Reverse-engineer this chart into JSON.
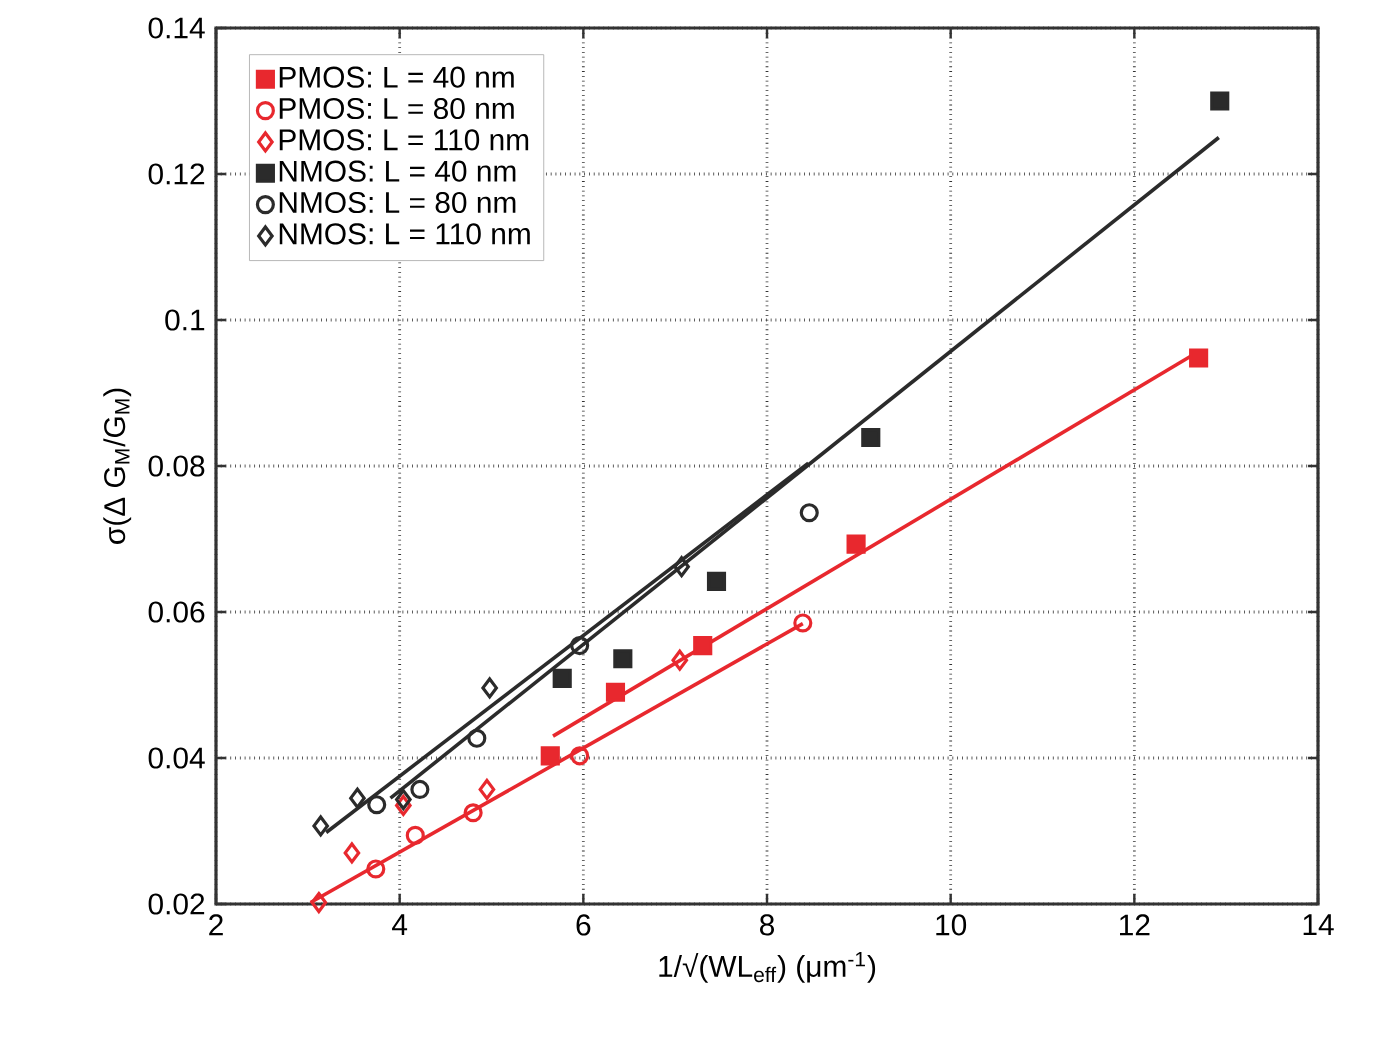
{
  "chart_data": {
    "type": "scatter",
    "xlabel": "1/√(WL$_{eff}$) (μm$^{-1}$)",
    "ylabel": "σ(Δ G$_{M}$/G$_{M}$)",
    "xlim": [
      2,
      14
    ],
    "ylim": [
      0.02,
      0.14
    ],
    "xticks": [
      2,
      4,
      6,
      8,
      10,
      12,
      14
    ],
    "yticks": [
      0.02,
      0.04,
      0.06,
      0.08,
      0.1,
      0.12,
      0.14
    ],
    "grid": true,
    "legend": "top left",
    "series": [
      {
        "name": "PMOS: L = 40 nm",
        "color": "#e8282e",
        "marker": "square",
        "x": [
          5.64,
          6.35,
          7.3,
          8.97,
          12.7
        ],
        "values": [
          0.0403,
          0.049,
          0.0554,
          0.0693,
          0.0948
        ]
      },
      {
        "name": "PMOS: L = 80 nm",
        "color": "#e8282e",
        "marker": "circle",
        "x": [
          3.74,
          4.17,
          4.8,
          5.96,
          8.39
        ],
        "values": [
          0.0248,
          0.0294,
          0.0325,
          0.0403,
          0.0585
        ]
      },
      {
        "name": "PMOS: L = 110 nm",
        "color": "#e8282e",
        "marker": "diamond",
        "x": [
          3.12,
          3.48,
          4.04,
          4.95,
          7.05
        ],
        "values": [
          0.0202,
          0.027,
          0.0335,
          0.0357,
          0.0534
        ]
      },
      {
        "name": "NMOS: L = 40 nm",
        "color": "#2b2b2b",
        "marker": "square",
        "x": [
          5.77,
          6.43,
          7.45,
          9.13,
          12.93
        ],
        "values": [
          0.0509,
          0.0536,
          0.0642,
          0.0839,
          0.13
        ]
      },
      {
        "name": "NMOS: L = 80 nm",
        "color": "#2b2b2b",
        "marker": "circle",
        "x": [
          3.75,
          4.22,
          4.84,
          5.96,
          8.46
        ],
        "values": [
          0.0336,
          0.0357,
          0.0427,
          0.0554,
          0.0736
        ]
      },
      {
        "name": "NMOS: L = 110 nm",
        "color": "#2b2b2b",
        "marker": "diamond",
        "x": [
          3.14,
          3.54,
          4.04,
          4.98,
          7.07
        ],
        "values": [
          0.0307,
          0.0345,
          0.0343,
          0.0496,
          0.0662
        ]
      },
      {
        "type": "line",
        "color": "#e8282e",
        "x": [
          3.03,
          8.39
        ],
        "values": [
          0.0202,
          0.0584
        ]
      },
      {
        "type": "line",
        "color": "#e8282e",
        "x": [
          5.67,
          12.65
        ],
        "values": [
          0.043,
          0.0953
        ]
      },
      {
        "type": "line",
        "color": "#2b2b2b",
        "x": [
          3.9,
          12.92
        ],
        "values": [
          0.0345,
          0.125
        ]
      },
      {
        "type": "line",
        "color": "#2b2b2b",
        "x": [
          3.2,
          8.45
        ],
        "values": [
          0.0298,
          0.0804
        ]
      }
    ]
  }
}
